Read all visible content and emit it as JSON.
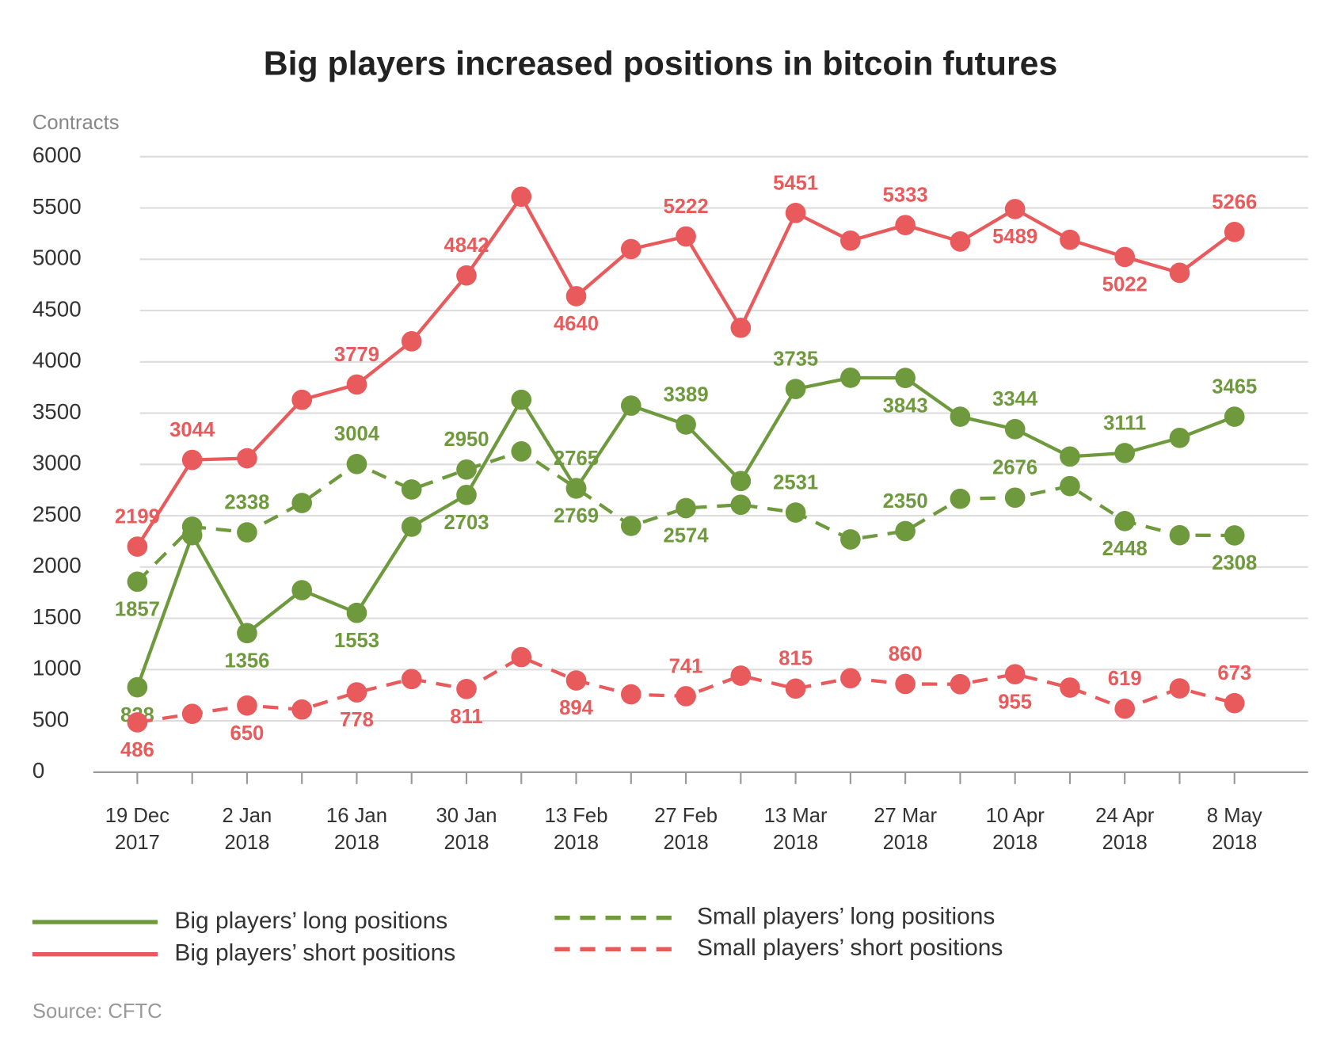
{
  "chart_data": {
    "type": "line",
    "title": "Big players increased positions in bitcoin futures",
    "y_label": "Contracts",
    "source": "Source: CFTC",
    "categories": [
      "19 Dec 2017",
      null,
      "2 Jan 2018",
      null,
      "16 Jan 2018",
      null,
      "30 Jan 2018",
      null,
      "13 Feb 2018",
      null,
      "27 Feb 2018",
      null,
      "13 Mar 2018",
      null,
      "27 Mar 2018",
      null,
      "10 Apr 2018",
      null,
      "24 Apr 2018",
      null,
      "8 May 2018"
    ],
    "ylim": [
      0,
      6000
    ],
    "yticks": [
      0,
      500,
      1000,
      1500,
      2000,
      2500,
      3000,
      3500,
      4000,
      4500,
      5000,
      5500,
      6000
    ],
    "grid": true,
    "series": [
      {
        "name": "Big players’ long positions",
        "color": "#6e9a3d",
        "dashed": false,
        "values": [
          828,
          2310,
          1356,
          1774,
          1553,
          2393,
          2703,
          3630,
          2765,
          3573,
          3389,
          2838,
          3735,
          3845,
          3843,
          3465,
          3344,
          3077,
          3111,
          3259,
          3465
        ]
      },
      {
        "name": "Big players’ short positions",
        "color": "#e85a5b",
        "dashed": false,
        "values": [
          2199,
          3044,
          3060,
          3630,
          3779,
          4200,
          4842,
          5610,
          4640,
          5099,
          5222,
          4332,
          5451,
          5181,
          5333,
          5173,
          5489,
          5190,
          5022,
          4868,
          5266
        ]
      },
      {
        "name": "Small players’ long positions",
        "color": "#6e9a3d",
        "dashed": true,
        "values": [
          1857,
          2393,
          2338,
          2624,
          3004,
          2756,
          2950,
          3127,
          2769,
          2401,
          2574,
          2607,
          2531,
          2269,
          2350,
          2665,
          2676,
          2789,
          2448,
          2310,
          2308
        ]
      },
      {
        "name": "Small players’ short positions",
        "color": "#e85a5b",
        "dashed": true,
        "values": [
          486,
          569,
          650,
          611,
          778,
          908,
          811,
          1122,
          894,
          759,
          741,
          941,
          815,
          916,
          860,
          858,
          955,
          825,
          619,
          817,
          673
        ]
      }
    ]
  }
}
